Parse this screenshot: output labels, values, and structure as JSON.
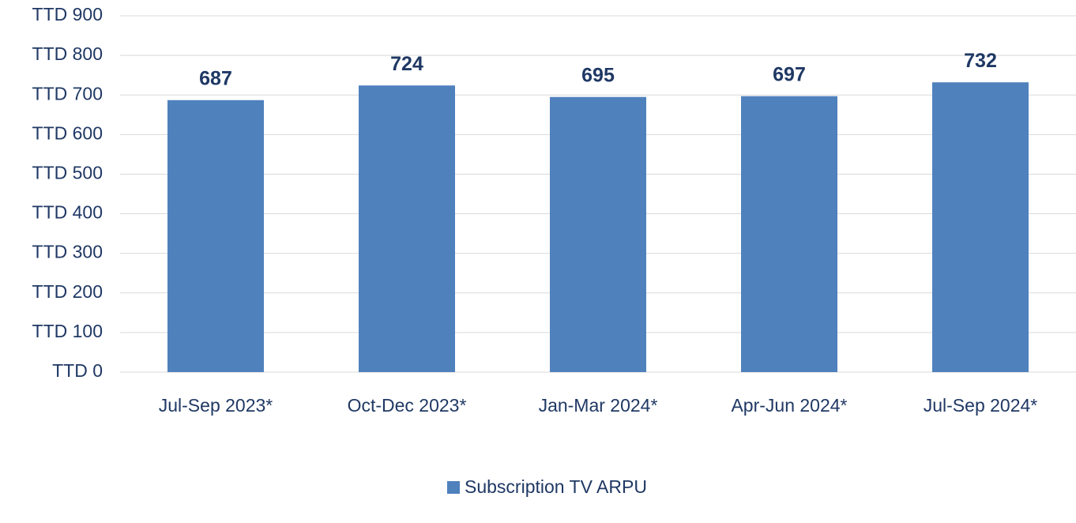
{
  "chart_data": {
    "type": "bar",
    "categories": [
      "Jul-Sep 2023*",
      "Oct-Dec 2023*",
      "Jan-Mar 2024*",
      "Apr-Jun 2024*",
      "Jul-Sep 2024*"
    ],
    "series": [
      {
        "name": "Subscription TV ARPU",
        "color": "#4f81bd",
        "values": [
          687,
          724,
          695,
          697,
          732
        ]
      }
    ],
    "ylim": [
      0,
      900
    ],
    "yticks": [
      {
        "value": 0,
        "label": "TTD 0"
      },
      {
        "value": 100,
        "label": "TTD 100"
      },
      {
        "value": 200,
        "label": "TTD 200"
      },
      {
        "value": 300,
        "label": "TTD 300"
      },
      {
        "value": 400,
        "label": "TTD 400"
      },
      {
        "value": 500,
        "label": "TTD 500"
      },
      {
        "value": 600,
        "label": "TTD 600"
      },
      {
        "value": 700,
        "label": "TTD 700"
      },
      {
        "value": 800,
        "label": "TTD 800"
      },
      {
        "value": 900,
        "label": "TTD 900"
      }
    ],
    "grid": true,
    "legend": "bottom"
  }
}
